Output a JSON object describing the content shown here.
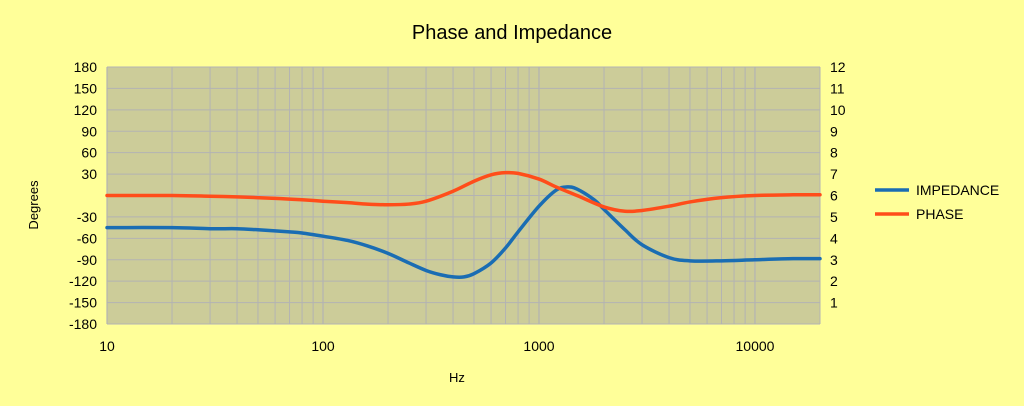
{
  "chart_data": {
    "type": "line",
    "title": "Phase and Impedance",
    "xlabel": "Hz",
    "ylabel": "Degrees",
    "y2label": "",
    "x_scale": "log",
    "xlim": [
      10,
      20000
    ],
    "ylim": [
      -180,
      180
    ],
    "y2lim": [
      0,
      12
    ],
    "x_ticks": [
      10,
      100,
      1000,
      10000
    ],
    "x_tick_labels": [
      "10",
      "100",
      "1000",
      "10000"
    ],
    "y_ticks": [
      180,
      150,
      120,
      90,
      60,
      30,
      -30,
      -60,
      -90,
      -120,
      -150,
      -180
    ],
    "y_tick_labels": [
      "180",
      "150",
      "120",
      "90",
      "60",
      "30",
      "-30",
      "-60",
      "-90",
      "-120",
      "-150",
      "-180"
    ],
    "y2_ticks": [
      12,
      11,
      10,
      9,
      8,
      7,
      6,
      5,
      4,
      3,
      2,
      1
    ],
    "y2_tick_labels": [
      "12",
      "11",
      "10",
      "9",
      "8",
      "7",
      "6",
      "5",
      "4",
      "3",
      "2",
      "1"
    ],
    "grid": true,
    "legend_position": "right",
    "plot_background": "#cccc99",
    "series": [
      {
        "name": "IMPEDANCE",
        "axis": "right",
        "color": "#1a6db3",
        "x": [
          10,
          20,
          30,
          40,
          50,
          60,
          70,
          80,
          100,
          130,
          160,
          200,
          250,
          300,
          350,
          400,
          450,
          500,
          600,
          700,
          800,
          1000,
          1200,
          1350,
          1500,
          1800,
          2000,
          2500,
          3000,
          4000,
          5000,
          7000,
          10000,
          15000,
          20000
        ],
        "values": [
          4.5,
          4.5,
          4.45,
          4.45,
          4.4,
          4.35,
          4.3,
          4.25,
          4.1,
          3.9,
          3.65,
          3.3,
          2.85,
          2.5,
          2.3,
          2.2,
          2.2,
          2.35,
          2.85,
          3.55,
          4.3,
          5.5,
          6.25,
          6.4,
          6.3,
          5.8,
          5.35,
          4.4,
          3.7,
          3.1,
          2.95,
          2.95,
          3.0,
          3.05,
          3.05
        ]
      },
      {
        "name": "PHASE",
        "axis": "left",
        "color": "#ff4d1a",
        "x": [
          10,
          20,
          30,
          40,
          60,
          80,
          100,
          130,
          160,
          200,
          250,
          300,
          400,
          500,
          600,
          700,
          800,
          1000,
          1200,
          1500,
          2000,
          2500,
          3000,
          4000,
          5000,
          7000,
          10000,
          15000,
          20000
        ],
        "values": [
          0,
          0,
          -1,
          -2,
          -4,
          -6,
          -8,
          -10,
          -12,
          -13,
          -12,
          -8,
          6,
          20,
          29,
          32,
          31,
          23,
          12,
          0,
          -16,
          -22,
          -21,
          -15,
          -9,
          -3,
          0,
          1,
          1
        ]
      }
    ]
  }
}
